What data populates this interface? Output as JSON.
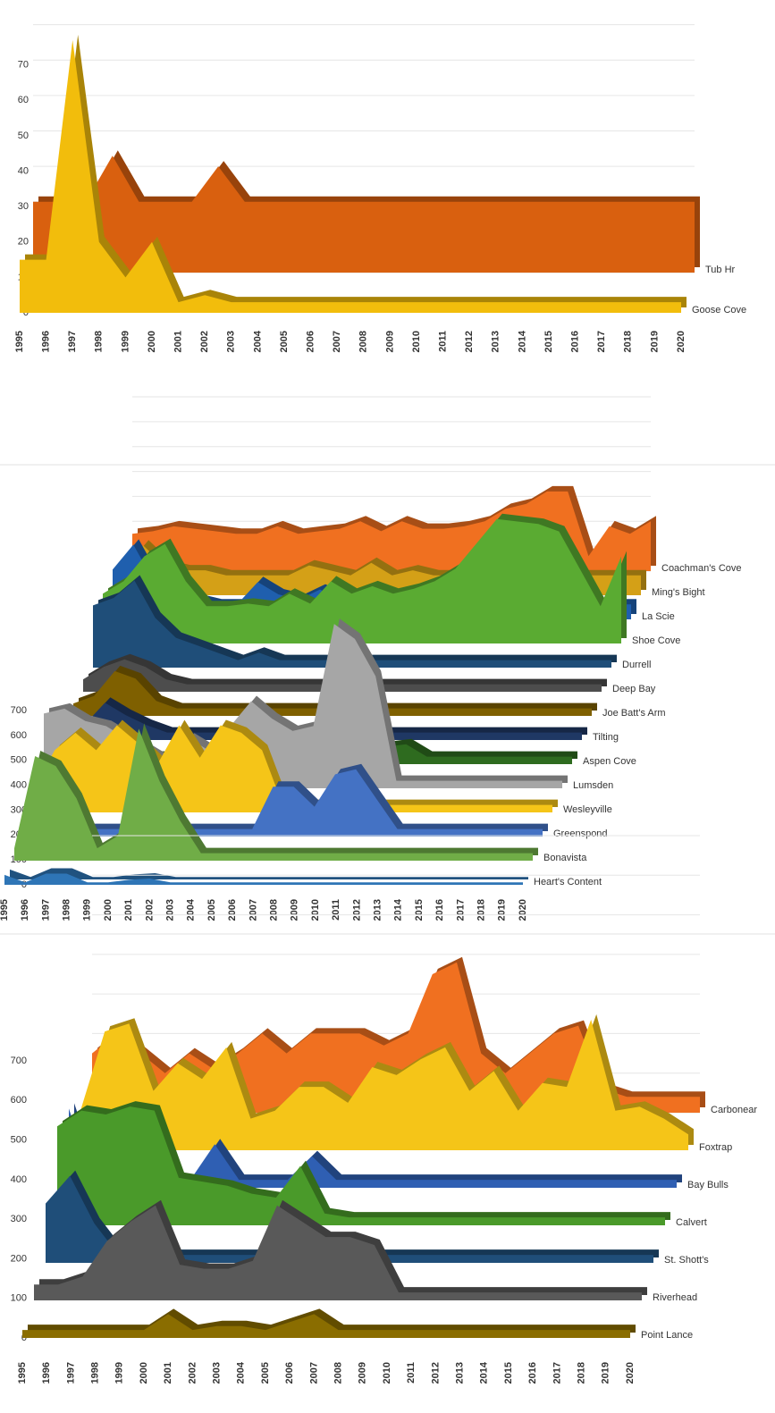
{
  "chart_data": [
    {
      "type": "area3d",
      "categories": [
        "1995",
        "1996",
        "1997",
        "1998",
        "1999",
        "2000",
        "2001",
        "2002",
        "2003",
        "2004",
        "2005",
        "2006",
        "2007",
        "2008",
        "2009",
        "2010",
        "2011",
        "2012",
        "2013",
        "2014",
        "2015",
        "2016",
        "2017",
        "2018",
        "2019",
        "2020"
      ],
      "ylim": [
        0,
        80
      ],
      "yticks": [
        0,
        10,
        20,
        30,
        40,
        50,
        60,
        70
      ],
      "grid": true,
      "series": [
        {
          "name": "Tub Hr",
          "color": "#d9600f",
          "values": [
            20,
            20,
            20,
            33,
            20,
            20,
            20,
            30,
            20,
            20,
            20,
            20,
            20,
            20,
            20,
            20,
            20,
            20,
            20,
            20,
            20,
            20,
            20,
            20,
            20,
            20
          ]
        },
        {
          "name": "Goose Cove",
          "color": "#f2bd0c",
          "values": [
            15,
            15,
            77,
            20,
            10,
            20,
            3,
            5,
            3,
            3,
            3,
            3,
            3,
            3,
            3,
            3,
            3,
            3,
            3,
            3,
            3,
            3,
            3,
            3,
            3,
            3
          ]
        }
      ]
    },
    {
      "type": "area3d",
      "categories": [
        "1995",
        "1996",
        "1997",
        "1998",
        "1999",
        "2000",
        "2001",
        "2002",
        "2003",
        "2004",
        "2005",
        "2006",
        "2007",
        "2008",
        "2009",
        "2010",
        "2011",
        "2012",
        "2013",
        "2014",
        "2015",
        "2016",
        "2017",
        "2018",
        "2019",
        "2020"
      ],
      "ylim": [
        0,
        700
      ],
      "yticks": [
        0,
        100,
        200,
        300,
        400,
        500,
        600,
        700
      ],
      "grid": true,
      "series": [
        {
          "name": "Coachman's Cove",
          "color": "#f07020",
          "values": [
            150,
            160,
            180,
            170,
            160,
            150,
            150,
            180,
            150,
            160,
            170,
            200,
            160,
            200,
            170,
            170,
            180,
            200,
            250,
            270,
            320,
            320,
            60,
            180,
            150,
            200
          ]
        },
        {
          "name": "Ming's Bight",
          "color": "#d4a017",
          "values": [
            100,
            200,
            120,
            100,
            100,
            80,
            80,
            80,
            80,
            120,
            100,
            80,
            130,
            80,
            100,
            80,
            80,
            80,
            80,
            80,
            80,
            80,
            80,
            80,
            80,
            80
          ]
        },
        {
          "name": "La Scie",
          "color": "#1f5fae",
          "values": [
            200,
            300,
            150,
            80,
            80,
            60,
            60,
            150,
            100,
            80,
            120,
            80,
            60,
            60,
            60,
            60,
            60,
            60,
            60,
            60,
            60,
            60,
            60,
            60,
            60,
            60
          ]
        },
        {
          "name": "Shoe Cove",
          "color": "#5aab32",
          "values": [
            200,
            250,
            350,
            400,
            250,
            150,
            150,
            160,
            150,
            200,
            160,
            250,
            200,
            230,
            200,
            220,
            250,
            300,
            400,
            500,
            490,
            480,
            450,
            300,
            150,
            350
          ]
        },
        {
          "name": "Durrell",
          "color": "#1f4e79",
          "values": [
            250,
            280,
            350,
            200,
            120,
            90,
            60,
            30,
            60,
            30,
            30,
            30,
            30,
            30,
            30,
            30,
            30,
            30,
            30,
            30,
            30,
            30,
            30,
            30,
            30,
            30
          ]
        },
        {
          "name": "Deep Bay",
          "color": "#4d4d4d",
          "values": [
            50,
            100,
            130,
            100,
            50,
            30,
            30,
            30,
            30,
            30,
            30,
            30,
            30,
            30,
            30,
            30,
            30,
            30,
            30,
            30,
            30,
            30,
            30,
            30,
            30,
            30
          ]
        },
        {
          "name": "Joe Batt's Arm",
          "color": "#7f6000",
          "values": [
            50,
            80,
            180,
            150,
            60,
            30,
            30,
            30,
            30,
            30,
            30,
            30,
            30,
            30,
            30,
            30,
            30,
            30,
            30,
            30,
            30,
            30,
            30,
            30,
            30,
            30
          ]
        },
        {
          "name": "Tilting",
          "color": "#1f3864",
          "values": [
            30,
            60,
            150,
            100,
            60,
            30,
            30,
            30,
            30,
            30,
            30,
            30,
            30,
            30,
            30,
            30,
            30,
            30,
            30,
            30,
            30,
            30,
            30,
            30,
            30,
            30
          ]
        },
        {
          "name": "Aspen Cove",
          "color": "#2e6b1f",
          "values": [
            30,
            30,
            30,
            30,
            30,
            30,
            30,
            30,
            30,
            30,
            30,
            30,
            30,
            30,
            30,
            80,
            70,
            80,
            30,
            30,
            30,
            30,
            30,
            30,
            30,
            30
          ]
        },
        {
          "name": "Lumsden",
          "color": "#a6a6a6",
          "values": [
            300,
            320,
            270,
            250,
            200,
            150,
            100,
            200,
            150,
            250,
            350,
            280,
            230,
            250,
            660,
            600,
            450,
            30,
            30,
            30,
            30,
            30,
            30,
            30,
            30,
            30
          ]
        },
        {
          "name": "Wesleyville",
          "color": "#f5c518",
          "values": [
            100,
            250,
            320,
            250,
            350,
            280,
            200,
            350,
            220,
            350,
            320,
            250,
            30,
            30,
            30,
            30,
            30,
            30,
            30,
            30,
            30,
            30,
            30,
            30,
            30,
            30
          ]
        },
        {
          "name": "Greenspond",
          "color": "#4472c4",
          "values": [
            30,
            30,
            30,
            30,
            30,
            30,
            30,
            30,
            30,
            30,
            30,
            30,
            200,
            200,
            120,
            250,
            270,
            150,
            30,
            30,
            30,
            30,
            30,
            30,
            30,
            30
          ]
        },
        {
          "name": "Bonavista",
          "color": "#70ad47",
          "values": [
            50,
            420,
            380,
            250,
            50,
            100,
            530,
            320,
            160,
            30,
            30,
            30,
            30,
            30,
            30,
            30,
            30,
            30,
            30,
            30,
            30,
            30,
            30,
            30,
            30,
            30
          ]
        },
        {
          "name": "Heart's Content",
          "color": "#2e75b6",
          "values": [
            40,
            10,
            45,
            45,
            10,
            10,
            20,
            25,
            10,
            10,
            10,
            10,
            10,
            10,
            10,
            10,
            10,
            10,
            10,
            10,
            10,
            10,
            10,
            10,
            10,
            10
          ]
        }
      ]
    },
    {
      "type": "area3d",
      "categories": [
        "1995",
        "1996",
        "1997",
        "1998",
        "1999",
        "2000",
        "2001",
        "2002",
        "2003",
        "2004",
        "2005",
        "2006",
        "2007",
        "2008",
        "2009",
        "2010",
        "2011",
        "2012",
        "2013",
        "2014",
        "2015",
        "2016",
        "2017",
        "2018",
        "2019",
        "2020"
      ],
      "ylim": [
        0,
        700
      ],
      "yticks": [
        0,
        100,
        200,
        300,
        400,
        500,
        600,
        700
      ],
      "grid": true,
      "series": [
        {
          "name": "Carbonear",
          "color": "#f07020",
          "values": [
            150,
            200,
            150,
            100,
            150,
            110,
            150,
            200,
            150,
            200,
            200,
            200,
            170,
            200,
            350,
            380,
            150,
            100,
            150,
            200,
            220,
            60,
            40,
            40,
            40,
            40
          ]
        },
        {
          "name": "Foxtrap",
          "color": "#f5c518",
          "values": [
            100,
            300,
            320,
            150,
            220,
            180,
            260,
            80,
            100,
            160,
            160,
            120,
            210,
            190,
            230,
            260,
            150,
            200,
            100,
            170,
            160,
            330,
            100,
            110,
            80,
            40
          ]
        },
        {
          "name": "Bay Bulls",
          "color": "#2f5fb3",
          "values": [
            200,
            20,
            20,
            20,
            20,
            20,
            110,
            20,
            20,
            20,
            80,
            20,
            20,
            20,
            20,
            20,
            20,
            20,
            20,
            20,
            20,
            20,
            20,
            20,
            20,
            20
          ]
        },
        {
          "name": "Calvert",
          "color": "#4a9a2a",
          "values": [
            250,
            290,
            280,
            300,
            290,
            120,
            110,
            100,
            80,
            70,
            150,
            30,
            20,
            20,
            20,
            20,
            20,
            20,
            20,
            20,
            20,
            20,
            20,
            20,
            20,
            20
          ]
        },
        {
          "name": "St. Shott's",
          "color": "#1f4e79",
          "values": [
            150,
            220,
            100,
            20,
            20,
            20,
            20,
            20,
            20,
            20,
            20,
            20,
            20,
            20,
            20,
            20,
            20,
            20,
            20,
            20,
            20,
            20,
            20,
            20,
            20,
            20
          ]
        },
        {
          "name": "Riverhead",
          "color": "#595959",
          "values": [
            40,
            40,
            60,
            150,
            200,
            240,
            90,
            80,
            80,
            100,
            240,
            200,
            160,
            160,
            140,
            20,
            20,
            20,
            20,
            20,
            20,
            20,
            20,
            20,
            20,
            20
          ]
        },
        {
          "name": "Point Lance",
          "color": "#8a6d00",
          "values": [
            20,
            20,
            20,
            20,
            20,
            20,
            60,
            20,
            30,
            30,
            20,
            40,
            60,
            20,
            20,
            20,
            20,
            20,
            20,
            20,
            20,
            20,
            20,
            20,
            20,
            20
          ]
        }
      ]
    }
  ]
}
